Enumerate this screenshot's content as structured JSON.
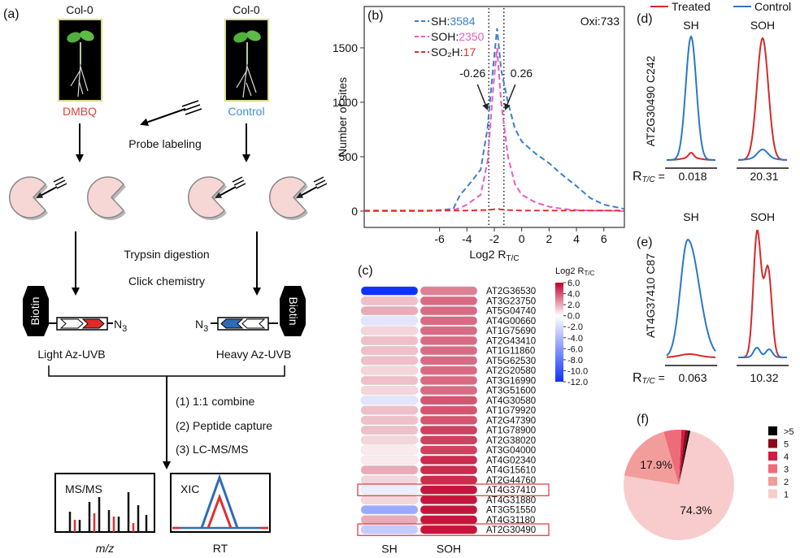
{
  "panel_labels": [
    "(a)",
    "(b)",
    "(c)",
    "(d)",
    "(e)",
    "(f)"
  ],
  "schematic": {
    "strains": [
      "Col-0",
      "Col-0"
    ],
    "treatments": [
      "DMBQ",
      "Control"
    ],
    "treatment_colors": [
      "#e0403c",
      "#3f8fd2"
    ],
    "probe_labeling": "Probe labeling",
    "steps": [
      "Trypsin digestion",
      "Click chemistry"
    ],
    "biotin": [
      "Biotin",
      "Biotin"
    ],
    "azide": {
      "main": "N",
      "sub": "3"
    },
    "probes": [
      "Light Az-UVB",
      "Heavy Az-UVB"
    ],
    "workflow": [
      "(1) 1:1 combine",
      "(2) Peptide capture",
      "(3) LC-MS/MS"
    ],
    "ms_panel": {
      "title": "MS/MS",
      "xlabel": "m/z"
    },
    "xic_panel": {
      "title": "XIC",
      "xlabel": "RT"
    }
  },
  "chart_data": [
    {
      "type": "line",
      "ylabel": "Number of sites",
      "xlabel": "Log2 R",
      "xlabel_sub": "T/C",
      "x": [
        -11.5,
        -7,
        -5,
        -4.5,
        -4,
        -3,
        -2.5,
        -2.1,
        -1.8,
        -1.5,
        -1,
        -0.5,
        0,
        1,
        2,
        3,
        4,
        5,
        6,
        7.5
      ],
      "legend_separator": ":",
      "series": [
        {
          "name": "SH",
          "count": "3584",
          "color": "#3a7fd0",
          "values": [
            0,
            0,
            20,
            150,
            220,
            380,
            760,
            1300,
            1680,
            1300,
            1000,
            760,
            640,
            530,
            440,
            330,
            230,
            120,
            60,
            20
          ]
        },
        {
          "name": "SOH",
          "count": "2350",
          "color": "#e85cc0",
          "values": [
            0,
            0,
            10,
            30,
            60,
            150,
            450,
            1100,
            1500,
            1000,
            500,
            250,
            150,
            80,
            40,
            20,
            10,
            5,
            5,
            0
          ]
        },
        {
          "name": "SO₂H",
          "count": "17",
          "color": "#e03030",
          "values": [
            5,
            5,
            5,
            5,
            5,
            8,
            10,
            15,
            20,
            15,
            10,
            8,
            5,
            5,
            5,
            5,
            5,
            5,
            5,
            5
          ]
        }
      ],
      "annotation": "Oxi:733",
      "threshold_lines": [
        -2.4,
        -1.3
      ],
      "threshold_labels": [
        "-0.26",
        "0.26"
      ],
      "xlim": [
        -11.5,
        7.5
      ],
      "xticks": [
        -6,
        -4,
        -2,
        0,
        2,
        4,
        6
      ],
      "ylim": [
        -150,
        1880
      ],
      "yticks": [
        0,
        500,
        1000,
        1500
      ]
    },
    {
      "type": "heatmap",
      "rows": [
        "AT2G36530",
        "AT3G23750",
        "AT5G04740",
        "AT4G00660",
        "AT1G75690",
        "AT2G43410",
        "AT1G11860",
        "AT5G62530",
        "AT2G20580",
        "AT3G16990",
        "AT3G51600",
        "AT4G30580",
        "AT1G79920",
        "AT2G47390",
        "AT1G78900",
        "AT2G38020",
        "AT3G04000",
        "AT4G02340",
        "AT4G15610",
        "AT2G44760",
        "AT4G37410",
        "AT4G31880",
        "AT3G51550",
        "AT4G31180",
        "AT2G30490"
      ],
      "series": [
        {
          "name": "SH",
          "values": [
            -12,
            1.5,
            2,
            -1.5,
            1,
            1.5,
            1.5,
            1.5,
            1,
            1.5,
            1,
            -1.5,
            1.5,
            1.5,
            1.5,
            1,
            0.5,
            0.5,
            2,
            1,
            -1,
            1,
            -5,
            2,
            -3
          ]
        },
        {
          "name": "SOH",
          "values": [
            3,
            3.5,
            3.5,
            3.5,
            3.5,
            3.5,
            3.5,
            3.5,
            3.5,
            3.5,
            3.5,
            4,
            4,
            4,
            4.5,
            4.5,
            4.5,
            5,
            5,
            5,
            5.5,
            5.5,
            5.5,
            5.5,
            5.5
          ]
        }
      ],
      "highlight_rows": [
        20,
        24
      ],
      "highlight_color": "#e0303a",
      "colorbar_title": "Log2 R",
      "colorbar_title_sub": "T/C",
      "clim": [
        -12,
        6
      ],
      "color_min": "#1030ff",
      "color_mid": "#ffffff",
      "color_max": "#c0002a",
      "cticks": [
        {
          "value": 6,
          "label": "6.0"
        },
        {
          "value": 4,
          "label": "4.0"
        },
        {
          "value": 2,
          "label": "2.0"
        },
        {
          "value": 0,
          "label": "0.0"
        },
        {
          "value": -2,
          "label": "-2.0"
        },
        {
          "value": -4,
          "label": "-4.0"
        },
        {
          "value": -6,
          "label": "-6.0"
        },
        {
          "value": -8,
          "label": "-8.0"
        },
        {
          "value": -10,
          "label": "-10.0"
        },
        {
          "value": -12,
          "label": "-12.0"
        }
      ]
    },
    {
      "type": "pie",
      "categories": [
        ">5",
        "5",
        "4",
        "3",
        "2",
        "1"
      ],
      "values": [
        0.6,
        1,
        1,
        5.2,
        17.9,
        74.3
      ],
      "value_labels": [
        null,
        null,
        null,
        null,
        "17.9%",
        "74.3%"
      ],
      "colors": [
        "#000000",
        "#8b0a1a",
        "#d41a44",
        "#ee6b7a",
        "#f39c9c",
        "#f8cccc"
      ]
    }
  ],
  "xic": {
    "legend": [
      "Treated",
      "Control"
    ],
    "colors": [
      "#d42a2a",
      "#2a78c8"
    ],
    "columns": [
      "SH",
      "SOH"
    ],
    "ratio_main": "R",
    "ratio_sub": "T/C",
    "ratio_eq": "=",
    "rows": [
      {
        "protein": "AT2G30490  C242",
        "ratios": [
          "0.018",
          "20.31"
        ]
      },
      {
        "protein": "AT4G37410  C87",
        "ratios": [
          "0.063",
          "10.32"
        ]
      }
    ]
  }
}
